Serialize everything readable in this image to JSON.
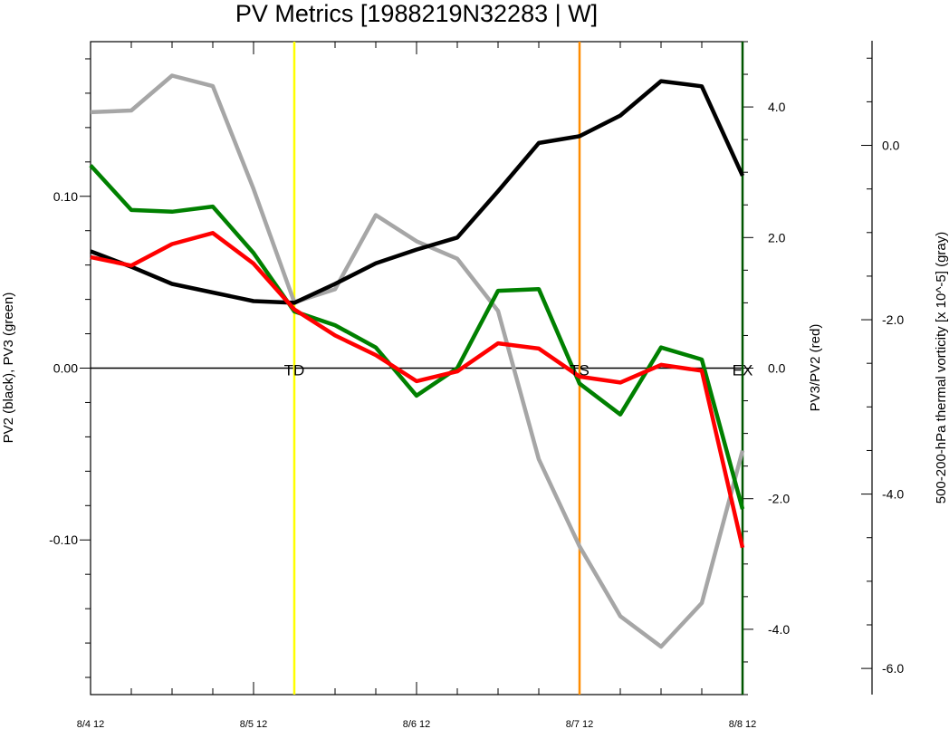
{
  "chart_data": {
    "type": "line",
    "title": "PV Metrics [1988219N32283 | W]",
    "x_tick_labels": [
      "8/4 12",
      "8/5 12",
      "8/6 12",
      "8/7 12",
      "8/8 12"
    ],
    "x": [
      0,
      0.25,
      0.5,
      0.75,
      1,
      1.25,
      1.5,
      1.75,
      2,
      2.25,
      2.5,
      2.75,
      3,
      3.25,
      3.5,
      3.75,
      4
    ],
    "xlim": [
      0,
      4
    ],
    "left_axis": {
      "label": "PV2 (black), PV3 (green)",
      "ylim": [
        -0.19,
        0.19
      ],
      "tick_values": [
        0.1,
        0.0,
        -0.1
      ],
      "tick_labels": [
        "0.10",
        "0.00",
        "-0.10"
      ]
    },
    "right_axis": {
      "label": "PV3/PV2 (red)",
      "ylim": [
        -5.0,
        5.0
      ],
      "tick_values": [
        4.0,
        2.0,
        0.0,
        -2.0,
        -4.0
      ],
      "tick_labels": [
        "4.0",
        "2.0",
        "0.0",
        "-2.0",
        "-4.0"
      ]
    },
    "far_right_axis": {
      "label": "500-200-hPa thermal vorticity [x 10^-5] (gray)",
      "ylim": [
        -6.3,
        1.2
      ],
      "tick_values": [
        0.0,
        -2.0,
        -4.0,
        -6.0
      ],
      "tick_labels": [
        "0.0",
        "-2.0",
        "-4.0",
        "-6.0"
      ]
    },
    "series": [
      {
        "axis": "left",
        "color": "#000000",
        "values": [
          0.068,
          0.059,
          0.049,
          0.044,
          0.039,
          0.038,
          0.049,
          0.061,
          0.069,
          0.076,
          0.103,
          0.131,
          0.135,
          0.147,
          0.167,
          0.164,
          0.112
        ]
      },
      {
        "axis": "left",
        "color": "#008000",
        "values": [
          0.118,
          0.092,
          0.091,
          0.094,
          0.067,
          0.033,
          0.025,
          0.012,
          -0.016,
          0.0,
          0.045,
          0.046,
          -0.009,
          -0.027,
          0.012,
          0.005,
          -0.082
        ]
      },
      {
        "axis": "right",
        "color": "#ff0000",
        "values": [
          1.7,
          1.57,
          1.9,
          2.07,
          1.6,
          0.9,
          0.5,
          0.2,
          -0.2,
          -0.05,
          0.38,
          0.3,
          -0.13,
          -0.22,
          0.05,
          -0.04,
          -2.75
        ]
      },
      {
        "axis": "far_right",
        "color": "#a6a6a6",
        "values": [
          0.38,
          0.4,
          0.8,
          0.68,
          -0.5,
          -1.8,
          -1.65,
          -0.8,
          -1.1,
          -1.3,
          -1.9,
          -3.6,
          -4.6,
          -5.4,
          -5.75,
          -5.25,
          -3.5
        ]
      }
    ],
    "events": [
      {
        "x": 1.25,
        "label": "TD",
        "color": "#ffff00"
      },
      {
        "x": 3.0,
        "label": "TS",
        "color": "#ff8c00"
      },
      {
        "x": 4.0,
        "label": "EX",
        "color": "#005500"
      }
    ],
    "grid": false,
    "legend": "none"
  }
}
